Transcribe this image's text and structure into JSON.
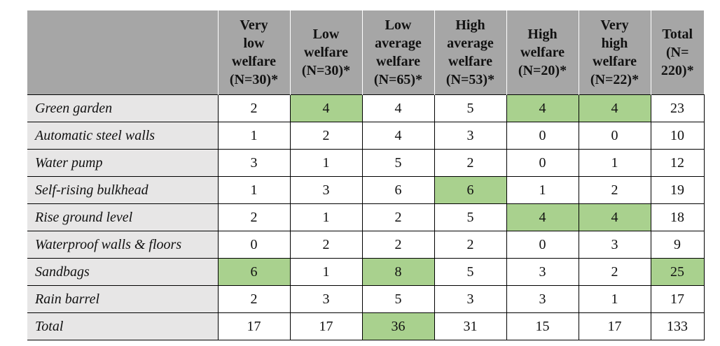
{
  "table": {
    "columns": [
      {
        "label": "",
        "lines": []
      },
      {
        "lines": [
          "Very",
          "low",
          "welfare",
          "(N=30)*"
        ]
      },
      {
        "lines": [
          "Low",
          "welfare",
          "(N=30)*"
        ]
      },
      {
        "lines": [
          "Low",
          "average",
          "welfare",
          "(N=65)*"
        ]
      },
      {
        "lines": [
          "High",
          "average",
          "welfare",
          "(N=53)*"
        ]
      },
      {
        "lines": [
          "High",
          "welfare",
          "(N=20)*"
        ]
      },
      {
        "lines": [
          "Very",
          "high",
          "welfare",
          "(N=22)*"
        ]
      },
      {
        "lines": [
          "Total",
          "(N=",
          "220)*"
        ]
      }
    ],
    "rows": [
      {
        "label": "Green garden",
        "values": [
          "2",
          "4",
          "4",
          "5",
          "4",
          "4",
          "23"
        ],
        "highlight": [
          false,
          true,
          false,
          false,
          true,
          true,
          false
        ]
      },
      {
        "label": "Automatic steel walls",
        "values": [
          "1",
          "2",
          "4",
          "3",
          "0",
          "0",
          "10"
        ],
        "highlight": [
          false,
          false,
          false,
          false,
          false,
          false,
          false
        ]
      },
      {
        "label": "Water pump",
        "values": [
          "3",
          "1",
          "5",
          "2",
          "0",
          "1",
          "12"
        ],
        "highlight": [
          false,
          false,
          false,
          false,
          false,
          false,
          false
        ]
      },
      {
        "label": "Self-rising bulkhead",
        "values": [
          "1",
          "3",
          "6",
          "6",
          "1",
          "2",
          "19"
        ],
        "highlight": [
          false,
          false,
          false,
          true,
          false,
          false,
          false
        ]
      },
      {
        "label": "Rise ground level",
        "values": [
          "2",
          "1",
          "2",
          "5",
          "4",
          "4",
          "18"
        ],
        "highlight": [
          false,
          false,
          false,
          false,
          true,
          true,
          false
        ]
      },
      {
        "label": "Waterproof walls & floors",
        "values": [
          "0",
          "2",
          "2",
          "2",
          "0",
          "3",
          "9"
        ],
        "highlight": [
          false,
          false,
          false,
          false,
          false,
          false,
          false
        ]
      },
      {
        "label": "Sandbags",
        "values": [
          "6",
          "1",
          "8",
          "5",
          "3",
          "2",
          "25"
        ],
        "highlight": [
          true,
          false,
          true,
          false,
          false,
          false,
          true
        ]
      },
      {
        "label": "Rain barrel",
        "values": [
          "2",
          "3",
          "5",
          "3",
          "3",
          "1",
          "17"
        ],
        "highlight": [
          false,
          false,
          false,
          false,
          false,
          false,
          false
        ]
      },
      {
        "label": "Total",
        "values": [
          "17",
          "17",
          "36",
          "31",
          "15",
          "17",
          "133"
        ],
        "highlight": [
          false,
          false,
          true,
          false,
          false,
          false,
          false
        ]
      }
    ],
    "colors": {
      "header_bg": "#a6a6a6",
      "label_bg": "#e7e6e6",
      "highlight_bg": "#a9d18e"
    }
  }
}
